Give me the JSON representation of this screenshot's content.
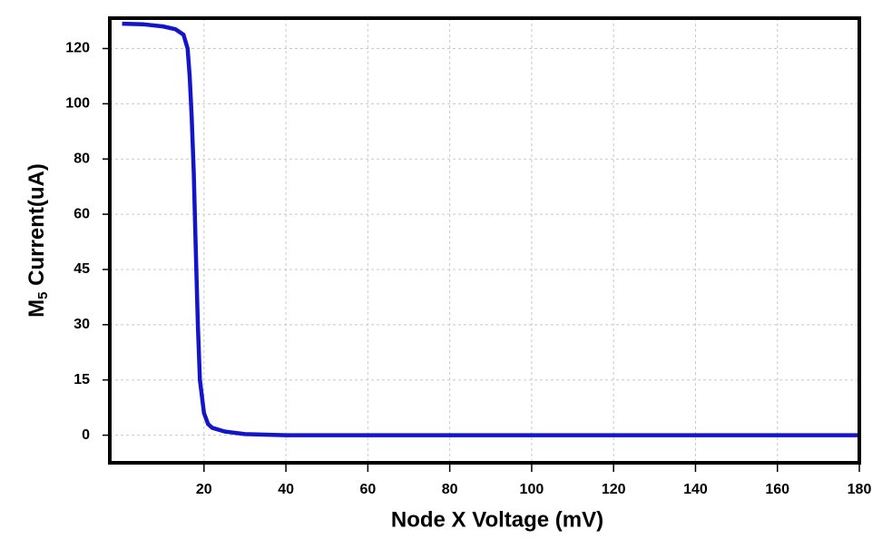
{
  "chart_data": {
    "type": "line",
    "x_label": "Node X Voltage (mV)",
    "y_label": {
      "main": "M",
      "subscript": "5",
      "rest": " Current(uA)"
    },
    "x": [
      0,
      5,
      10,
      13,
      15,
      16,
      16.5,
      17,
      17.5,
      18,
      18.5,
      19,
      20,
      21,
      22,
      25,
      30,
      40,
      180
    ],
    "series": [
      {
        "name": "M5 Current",
        "color": "#1414c8",
        "values": [
          129,
          128.8,
          128,
          127,
          125,
          120,
          110,
          95,
          75,
          50,
          30,
          15,
          6,
          3,
          2,
          1,
          0.3,
          0,
          0
        ]
      }
    ],
    "xlim": [
      -3,
      180
    ],
    "xticks": [
      20,
      40,
      60,
      80,
      100,
      120,
      140,
      160,
      180
    ],
    "ylim": [
      -7.5,
      131
    ],
    "yticks": [
      0,
      15,
      30,
      45,
      60,
      80,
      100,
      120
    ],
    "grid": true
  }
}
